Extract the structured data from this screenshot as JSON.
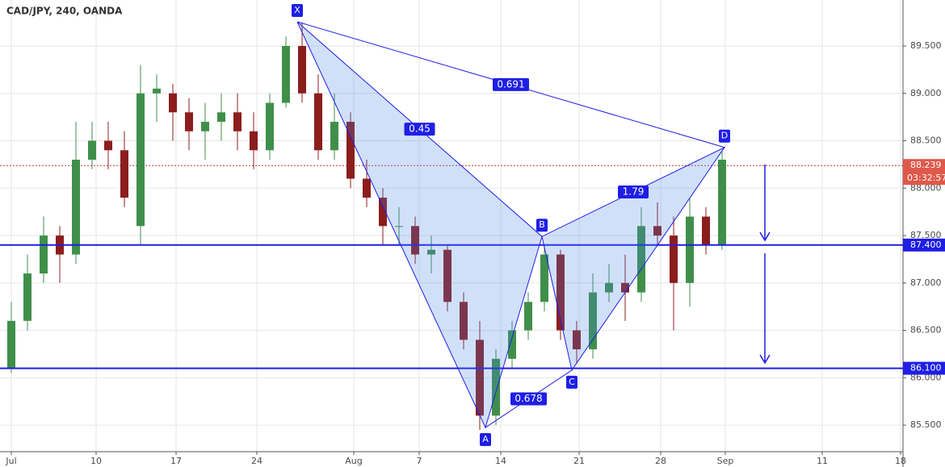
{
  "chart_data": {
    "type": "candlestick",
    "title": "CAD/JPY, 240, OANDA",
    "x": [
      0,
      1,
      2,
      3,
      4,
      5,
      6,
      7,
      8,
      9,
      10,
      11,
      12,
      13,
      14,
      15,
      16,
      17,
      18,
      19,
      20,
      21,
      22,
      23,
      24,
      25,
      26,
      27,
      28,
      29,
      30,
      31,
      32,
      33,
      34,
      35,
      36,
      37,
      38,
      39,
      40,
      41,
      42,
      43,
      44
    ],
    "open": [
      86.1,
      86.6,
      87.1,
      87.5,
      87.3,
      88.3,
      88.5,
      88.4,
      87.6,
      89.0,
      89.0,
      88.8,
      88.6,
      88.7,
      88.8,
      88.6,
      88.4,
      88.9,
      89.5,
      89.0,
      88.4,
      88.7,
      88.1,
      87.9,
      87.6,
      87.6,
      87.3,
      87.35,
      86.8,
      86.4,
      85.6,
      86.2,
      86.5,
      86.8,
      87.3,
      86.5,
      86.3,
      86.9,
      87.0,
      86.9,
      87.6,
      87.5,
      87.0,
      87.7,
      87.4
    ],
    "high": [
      86.8,
      87.3,
      87.7,
      87.6,
      88.7,
      88.7,
      88.7,
      88.6,
      89.3,
      89.2,
      89.1,
      88.95,
      88.9,
      89.0,
      89.0,
      88.8,
      89.0,
      89.6,
      89.75,
      89.2,
      89.0,
      88.8,
      88.3,
      88.0,
      87.8,
      87.7,
      87.5,
      87.4,
      86.9,
      86.6,
      86.3,
      86.6,
      86.9,
      87.4,
      87.35,
      86.6,
      87.1,
      87.2,
      87.3,
      87.8,
      87.85,
      87.7,
      87.9,
      87.8,
      88.4
    ],
    "low": [
      86.05,
      86.5,
      87.0,
      87.0,
      87.2,
      88.2,
      88.2,
      87.8,
      87.4,
      88.7,
      88.5,
      88.4,
      88.3,
      88.5,
      88.4,
      88.2,
      88.3,
      88.85,
      88.9,
      88.3,
      88.3,
      88.0,
      87.8,
      87.4,
      87.4,
      87.2,
      87.1,
      86.7,
      86.3,
      85.45,
      85.5,
      86.1,
      86.4,
      86.7,
      86.4,
      86.15,
      86.2,
      86.8,
      86.6,
      86.8,
      87.4,
      86.5,
      86.75,
      87.3,
      87.35
    ],
    "close": [
      86.6,
      87.1,
      87.5,
      87.3,
      88.3,
      88.5,
      88.4,
      87.9,
      89.0,
      89.05,
      88.8,
      88.6,
      88.7,
      88.8,
      88.6,
      88.4,
      88.9,
      89.5,
      89.0,
      88.4,
      88.7,
      88.1,
      87.9,
      87.6,
      87.6,
      87.3,
      87.35,
      86.8,
      86.4,
      85.6,
      86.2,
      86.5,
      86.8,
      87.3,
      86.5,
      86.3,
      86.9,
      87.0,
      86.9,
      87.6,
      87.5,
      87.0,
      87.7,
      87.4,
      88.3
    ],
    "up_color": "#3f8f4a",
    "down_color": "#8c1d1d",
    "xlim": [
      -0.7,
      55.2
    ],
    "xticks": [
      {
        "value": 0,
        "label": "Jul"
      },
      {
        "value": 5.25,
        "label": "10"
      },
      {
        "value": 10.2,
        "label": "17"
      },
      {
        "value": 15.2,
        "label": "24"
      },
      {
        "value": 21.2,
        "label": "Aug"
      },
      {
        "value": 25.25,
        "label": "7"
      },
      {
        "value": 30.3,
        "label": "14"
      },
      {
        "value": 35.15,
        "label": "21"
      },
      {
        "value": 40.2,
        "label": "28"
      },
      {
        "value": 44.2,
        "label": "Sep"
      },
      {
        "value": 50.2,
        "label": "11"
      },
      {
        "value": 55.05,
        "label": "18"
      }
    ],
    "ylim": [
      85.22,
      89.985
    ],
    "yticks": [
      {
        "value": 85.5,
        "label": "85.500"
      },
      {
        "value": 86,
        "label": "86.000"
      },
      {
        "value": 86.5,
        "label": "86.500"
      },
      {
        "value": 87,
        "label": "87.000"
      },
      {
        "value": 87.5,
        "label": "87.500"
      },
      {
        "value": 88,
        "label": "88.000"
      },
      {
        "value": 88.5,
        "label": "88.500"
      },
      {
        "value": 89,
        "label": "89.000"
      },
      {
        "value": 89.5,
        "label": "89.500"
      }
    ],
    "grid": true,
    "pattern": {
      "color": "#1e1ee6",
      "points": [
        {
          "label": "X",
          "x": 17.7,
          "y": 89.755
        },
        {
          "label": "A",
          "x": 29.35,
          "y": 85.475
        },
        {
          "label": "B",
          "x": 32.85,
          "y": 87.49
        },
        {
          "label": "C",
          "x": 34.7,
          "y": 86.08
        },
        {
          "label": "D",
          "x": 44.15,
          "y": 88.43
        }
      ],
      "ratios": [
        "0.45",
        "1.79",
        "0.691",
        "0.678"
      ]
    },
    "levels": [
      {
        "value": 87.4,
        "label": "87.400"
      },
      {
        "value": 86.1,
        "label": "86.100"
      }
    ],
    "last_price": {
      "value": 88.239,
      "label": "88.239"
    },
    "countdown": "03:32:57"
  }
}
